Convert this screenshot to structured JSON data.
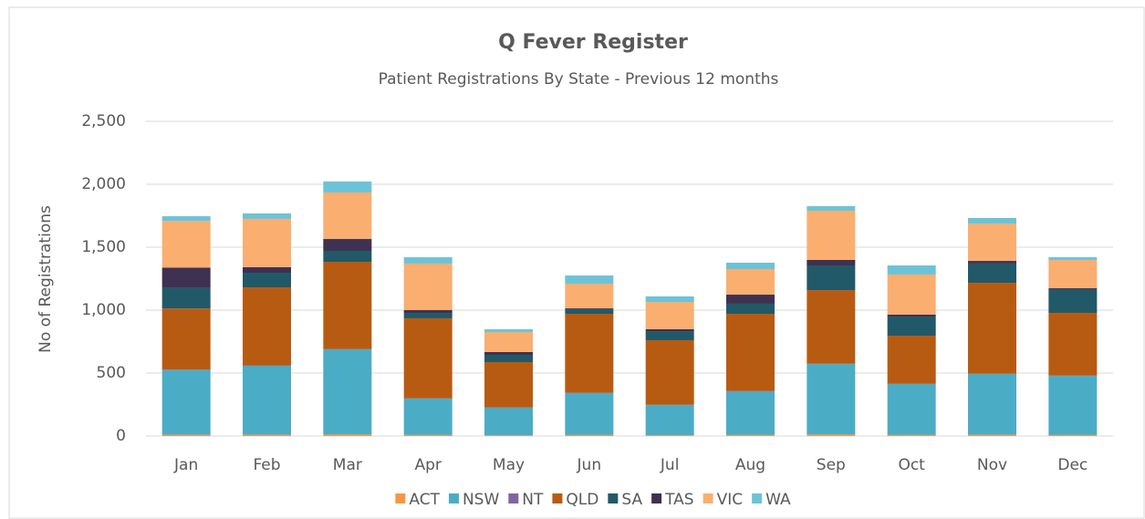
{
  "chart_data": {
    "type": "stacked_bar",
    "title": "Q Fever Register",
    "subtitle": "Patient Registrations By State - Previous 12 months",
    "y_label": "No of Registrations",
    "categories": [
      "Jan",
      "Feb",
      "Mar",
      "Apr",
      "May",
      "Jun",
      "Jul",
      "Aug",
      "Sep",
      "Oct",
      "Nov",
      "Dec"
    ],
    "series": [
      {
        "name": "ACT",
        "color": "#F79646",
        "values": [
          10,
          10,
          12,
          8,
          5,
          8,
          6,
          8,
          12,
          8,
          10,
          8
        ]
      },
      {
        "name": "NSW",
        "color": "#4BACC6",
        "values": [
          515,
          548,
          676,
          289,
          220,
          333,
          240,
          347,
          560,
          405,
          483,
          470
        ]
      },
      {
        "name": "NT",
        "color": "#8064A2",
        "values": [
          3,
          3,
          3,
          2,
          2,
          2,
          2,
          2,
          3,
          2,
          2,
          2
        ]
      },
      {
        "name": "QLD",
        "color": "#B85B12",
        "values": [
          485,
          620,
          693,
          636,
          360,
          628,
          513,
          614,
          584,
          382,
          722,
          498
        ]
      },
      {
        "name": "SA",
        "color": "#215968",
        "values": [
          165,
          116,
          87,
          43,
          58,
          36,
          72,
          80,
          196,
          152,
          153,
          189
        ]
      },
      {
        "name": "TAS",
        "color": "#3F3151",
        "values": [
          160,
          44,
          94,
          22,
          22,
          7,
          15,
          72,
          44,
          15,
          21,
          7
        ]
      },
      {
        "name": "VIC",
        "color": "#FAAE70",
        "values": [
          370,
          384,
          370,
          370,
          159,
          196,
          217,
          203,
          391,
          319,
          297,
          225
        ]
      },
      {
        "name": "WA",
        "color": "#6CC3D8",
        "values": [
          38,
          43,
          87,
          50,
          22,
          65,
          44,
          51,
          36,
          72,
          44,
          21
        ]
      }
    ],
    "ylim": [
      0,
      2500
    ],
    "yticks": [
      0,
      500,
      {
        "value": 1000,
        "label": "1,000"
      },
      {
        "value": 1500,
        "label": "1,500"
      },
      {
        "value": 2000,
        "label": "2,000"
      },
      {
        "value": 2500,
        "label": "2,500"
      }
    ],
    "grid": true,
    "legend": "bottom"
  }
}
